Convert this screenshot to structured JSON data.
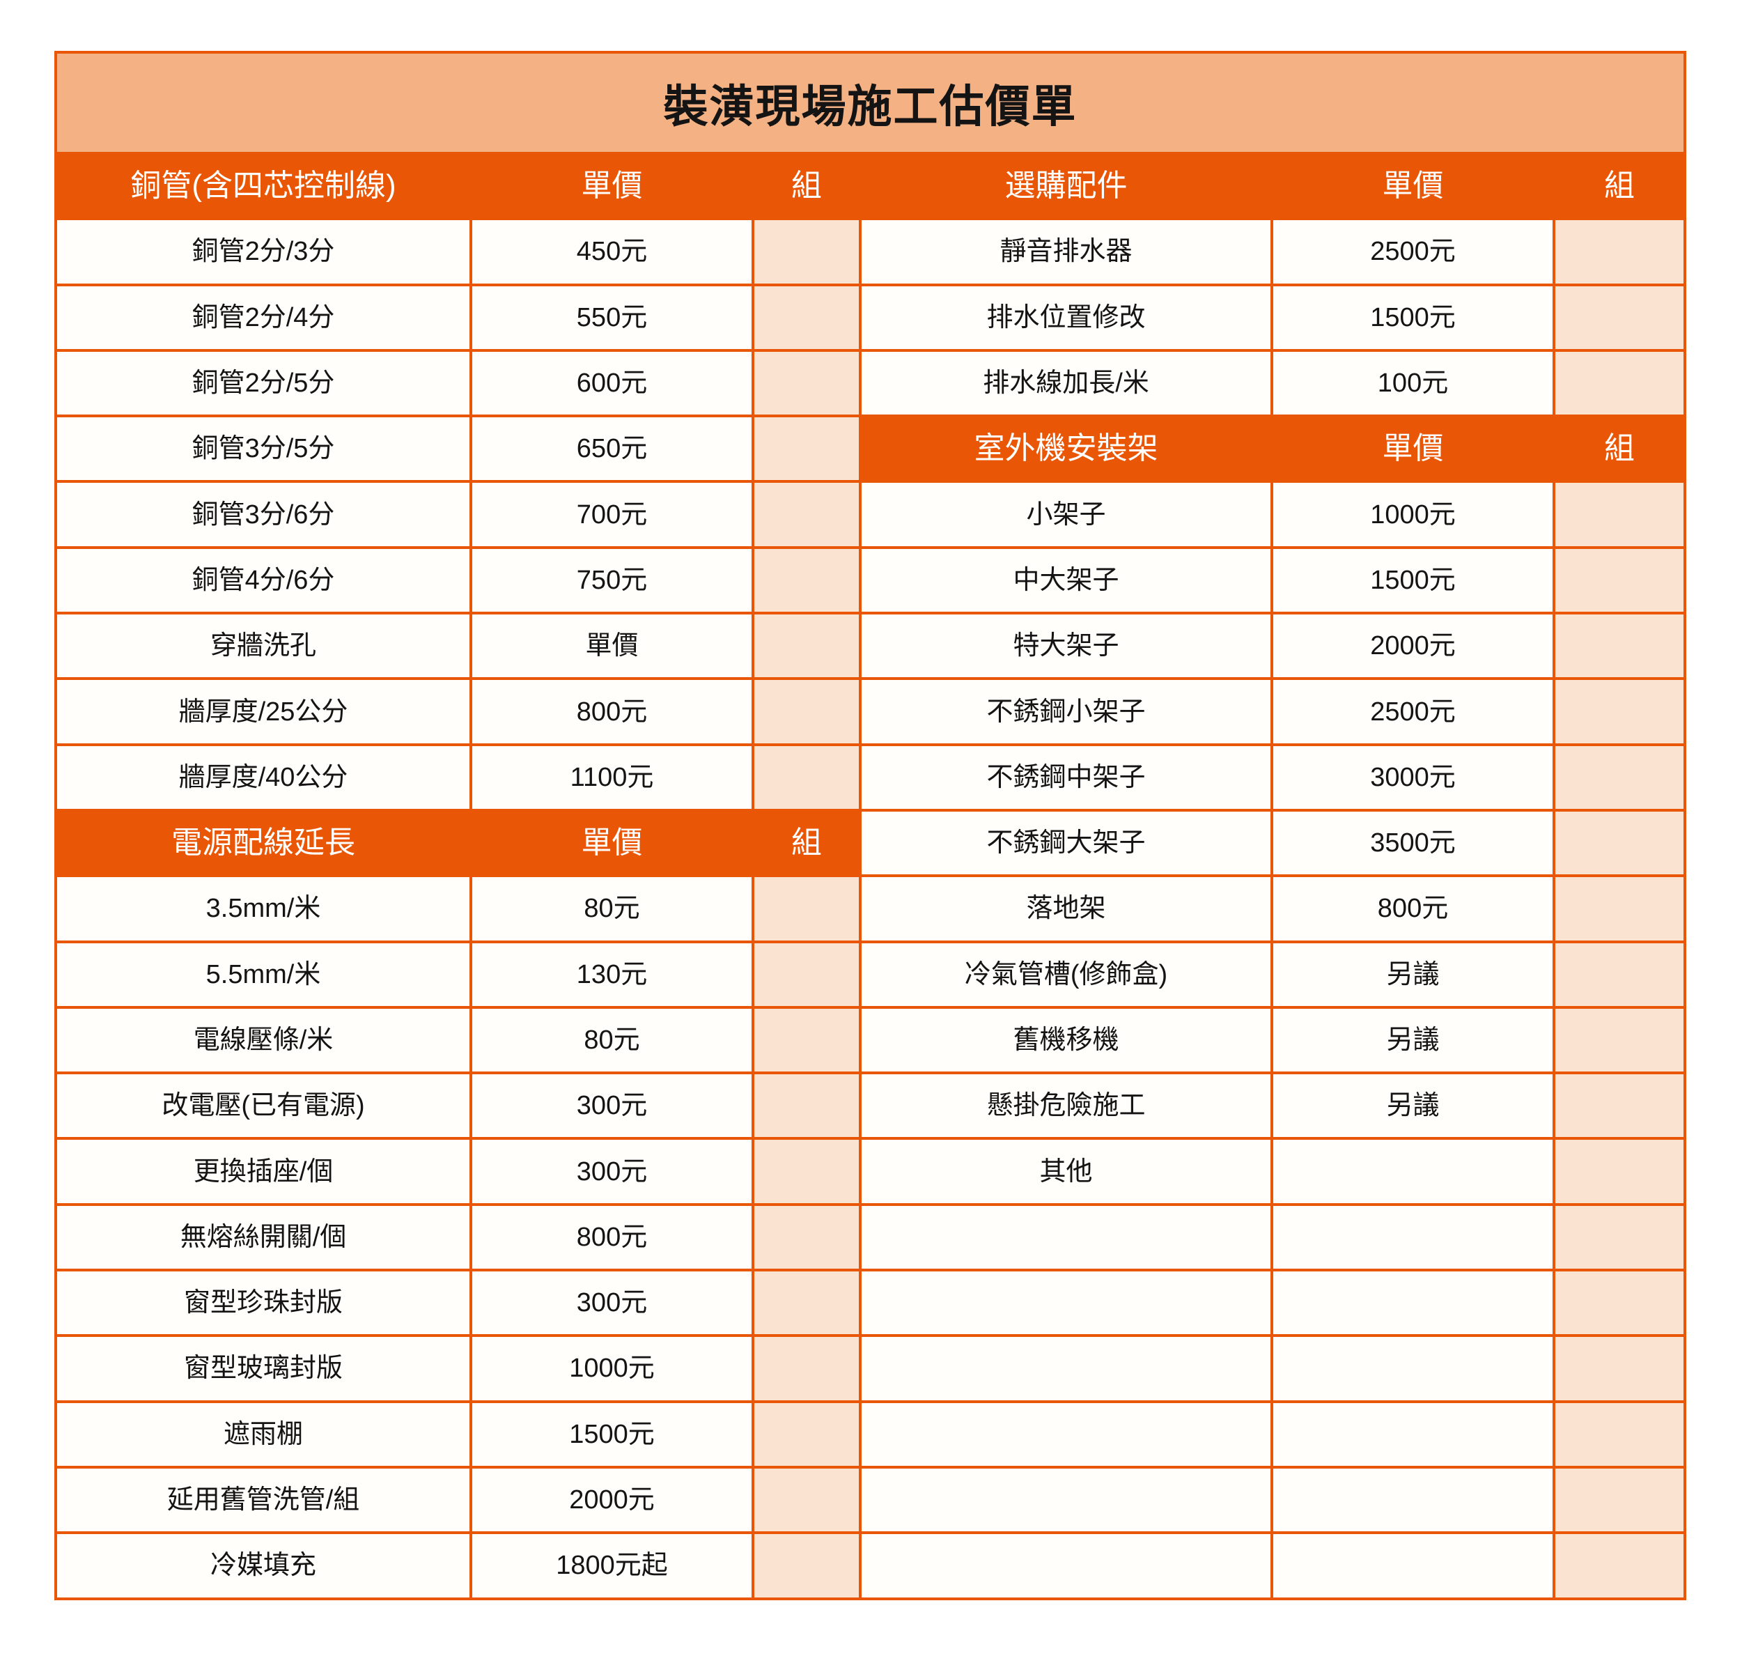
{
  "title": "裝潢現場施工估價單",
  "colors": {
    "header_bg": "#E95706",
    "grid_line": "#E95706",
    "title_bg": "#F4B183",
    "unit_column_bg": "#FBE3D2",
    "cell_bg": "#FFFEFA",
    "header_text": "#FFFFFF",
    "body_text": "#141414"
  },
  "left_rows": [
    {
      "type": "header",
      "item": "銅管(含四芯控制線)",
      "price": "單價",
      "unit": "組"
    },
    {
      "type": "data",
      "item": "銅管2分/3分",
      "price": "450元",
      "unit": ""
    },
    {
      "type": "data",
      "item": "銅管2分/4分",
      "price": "550元",
      "unit": ""
    },
    {
      "type": "data",
      "item": "銅管2分/5分",
      "price": "600元",
      "unit": ""
    },
    {
      "type": "data",
      "item": "銅管3分/5分",
      "price": "650元",
      "unit": ""
    },
    {
      "type": "data",
      "item": "銅管3分/6分",
      "price": "700元",
      "unit": ""
    },
    {
      "type": "data",
      "item": "銅管4分/6分",
      "price": "750元",
      "unit": ""
    },
    {
      "type": "data",
      "item": "穿牆洗孔",
      "price": "單價",
      "unit": ""
    },
    {
      "type": "data",
      "item": "牆厚度/25公分",
      "price": "800元",
      "unit": ""
    },
    {
      "type": "data",
      "item": "牆厚度/40公分",
      "price": "1100元",
      "unit": ""
    },
    {
      "type": "header",
      "item": "電源配線延長",
      "price": "單價",
      "unit": "組"
    },
    {
      "type": "data",
      "item": "3.5mm/米",
      "price": "80元",
      "unit": ""
    },
    {
      "type": "data",
      "item": "5.5mm/米",
      "price": "130元",
      "unit": ""
    },
    {
      "type": "data",
      "item": "電線壓條/米",
      "price": "80元",
      "unit": ""
    },
    {
      "type": "data",
      "item": "改電壓(已有電源)",
      "price": "300元",
      "unit": ""
    },
    {
      "type": "data",
      "item": "更換插座/個",
      "price": "300元",
      "unit": ""
    },
    {
      "type": "data",
      "item": "無熔絲開關/個",
      "price": "800元",
      "unit": ""
    },
    {
      "type": "data",
      "item": "窗型珍珠封版",
      "price": "300元",
      "unit": ""
    },
    {
      "type": "data",
      "item": "窗型玻璃封版",
      "price": "1000元",
      "unit": ""
    },
    {
      "type": "data",
      "item": "遮雨棚",
      "price": "1500元",
      "unit": ""
    },
    {
      "type": "data",
      "item": "延用舊管洗管/組",
      "price": "2000元",
      "unit": ""
    },
    {
      "type": "data",
      "item": "冷媒填充",
      "price": "1800元起",
      "unit": ""
    }
  ],
  "right_rows": [
    {
      "type": "header",
      "item": "選購配件",
      "price": "單價",
      "unit": "組"
    },
    {
      "type": "data",
      "item": "靜音排水器",
      "price": "2500元",
      "unit": ""
    },
    {
      "type": "data",
      "item": "排水位置修改",
      "price": "1500元",
      "unit": ""
    },
    {
      "type": "data",
      "item": "排水線加長/米",
      "price": "100元",
      "unit": ""
    },
    {
      "type": "header",
      "item": "室外機安裝架",
      "price": "單價",
      "unit": "組"
    },
    {
      "type": "data",
      "item": "小架子",
      "price": "1000元",
      "unit": ""
    },
    {
      "type": "data",
      "item": "中大架子",
      "price": "1500元",
      "unit": ""
    },
    {
      "type": "data",
      "item": "特大架子",
      "price": "2000元",
      "unit": ""
    },
    {
      "type": "data",
      "item": "不銹鋼小架子",
      "price": "2500元",
      "unit": ""
    },
    {
      "type": "data",
      "item": "不銹鋼中架子",
      "price": "3000元",
      "unit": ""
    },
    {
      "type": "data",
      "item": "不銹鋼大架子",
      "price": "3500元",
      "unit": ""
    },
    {
      "type": "data",
      "item": "落地架",
      "price": "800元",
      "unit": ""
    },
    {
      "type": "data",
      "item": "冷氣管槽(修飾盒)",
      "price": "另議",
      "unit": ""
    },
    {
      "type": "data",
      "item": "舊機移機",
      "price": "另議",
      "unit": ""
    },
    {
      "type": "data",
      "item": "懸掛危險施工",
      "price": "另議",
      "unit": ""
    },
    {
      "type": "data",
      "item": "其他",
      "price": "",
      "unit": ""
    },
    {
      "type": "data",
      "item": "",
      "price": "",
      "unit": ""
    },
    {
      "type": "data",
      "item": "",
      "price": "",
      "unit": ""
    },
    {
      "type": "data",
      "item": "",
      "price": "",
      "unit": ""
    },
    {
      "type": "data",
      "item": "",
      "price": "",
      "unit": ""
    },
    {
      "type": "data",
      "item": "",
      "price": "",
      "unit": ""
    },
    {
      "type": "data",
      "item": "",
      "price": "",
      "unit": ""
    }
  ]
}
